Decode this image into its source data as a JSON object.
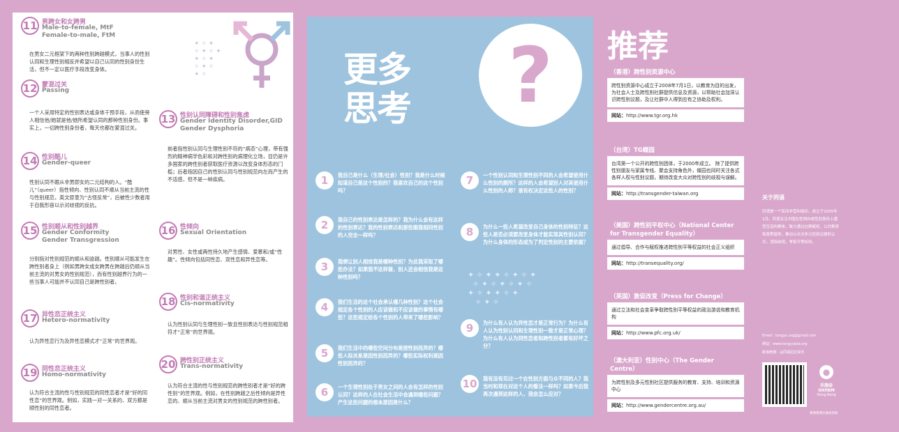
{
  "panel1": {
    "terms": [
      {
        "num": "11",
        "zh": "男跨女和女跨男",
        "en": "Male-to-female, MtF\nFemale-to-male, FtM",
        "desc": "在男女二元框架下的两种性别跨越模式，当事人的性别认同和生理性别相反并希望以自己认同的性别身份生活，但不一定以医疗手段改变身体。"
      },
      {
        "num": "12",
        "zh": "蒙混过关",
        "en": "Passing",
        "desc": "一个人采用特定的性别表达或身体干预手段，从而使旁人相信他/她就是他/她所希望认同的那种性别身份。事实上，一切跨性别身份者，每天也都在蒙混过关。"
      },
      {
        "num": "14",
        "zh": "性别酷儿",
        "en": "Gender-queer",
        "desc": "性别认同不跟从非男即女的二元结构的人。“酷儿”（queer）指性倾向、性别认同不顺从当前主流的性与性别规范，英文原意为“古怪反常”，后被性少数者用于自我形容以示对歧视的反抗。"
      },
      {
        "num": "15",
        "zh": "性别顺从和性别越界",
        "en": "Gender Conformity\nGender Transgression",
        "desc": "分别指对性别规范的顺从和逾越。性别顺从可能发生在跨性别者身上（例如男跨女成女跨男在跨越后仍顺从当前主流的对男女的性别规范），而有性别越界行为的一些当事人可能并不认同自己是跨性别者。"
      },
      {
        "num": "17",
        "zh": "异性恋正统主义",
        "en": "Hetero-normativity",
        "desc": "认为异性恋行为及异性恋模式才“正常”的世界观。"
      },
      {
        "num": "19",
        "zh": "同性恋正统主义",
        "en": "Homo-normativity",
        "desc": "认为符合主流的性与性别规范的同性恋者才是“好的同性恋”的世界观。例如，实践一对一关系的、双方都是顺性别的同性恋者。"
      },
      {
        "num": "13",
        "zh": "性别认同障碍和性别焦虑",
        "en": "Gender Identity Disorder,GID\nGender Dysphoria",
        "desc": "前者指性别认同与生理性别不符的“病态”心理，带有强烈的精神病学色彩和对跨性别的病理化立场，目仍是许多国家的跨性别者获取医疗资源以改变身体形态的门槛；后者指因自己的性别认同与性别规范向左而产生的不适感，但不是一种疾病。"
      },
      {
        "num": "16",
        "zh": "性倾向",
        "en": "Sexual Orientation",
        "desc": "对男性、女性或两性持久地产生感情、爱慕和/或“性趣”。性倾向包括同性恋、双性恋和异性恋等。"
      },
      {
        "num": "18",
        "zh": "性别和谐正统主义",
        "en": "Cis-normativity",
        "desc": "认为性别认同与生理性别一致且性别表达与性别规范相符才“正常”的世界观。"
      },
      {
        "num": "20",
        "zh": "跨性别正统主义",
        "en": "Trans-normativity",
        "desc": "认为符合主流的性与性别规范的跨性别者才是“好的跨性别”的世界观。例如，在性别跨越之后性倾向是异性恋的、顺从当前主流对男女的性别规范的跨性别者。"
      }
    ]
  },
  "panel2": {
    "title_line1": "更多",
    "title_line2": "思考",
    "qmark": "?",
    "questions": [
      {
        "n": "1",
        "t": "我自己是什么（生理/社会）性别？我是什么时候知道自己是这个性别的？我喜欢自己的这个性别吗？"
      },
      {
        "n": "2",
        "t": "我自己的性别表达是怎样的？我为什么会有这样的性别表达？我的性别表达和那些跟我相同性别的人完全一样吗？"
      },
      {
        "n": "3",
        "t": "我想让别人相信我是哪种性别？为此我采取了哪些办法？如果我不这样做，别人还会相信我是这种性别吗？"
      },
      {
        "n": "4",
        "t": "我们生活的这个社会承认哪几种性别？这个社会规定各个性别的人应该做和不应该做的事情有哪些？这些规定给各个性别的人带来了哪些影响？"
      },
      {
        "n": "5",
        "t": "我们生活中的哪些空间分布是按性别而异的？哪些人际关系是因性别而异的？哪些实际权利是因性别而异的？"
      },
      {
        "n": "6",
        "t": "一个生理性别处于男女之间的人会有怎样的性别认同？这样的人在社会生活中会遇到哪些问题？产生这些问题的根本原因是什么？"
      },
      {
        "n": "7",
        "t": "一个性别认同和生理性别不同的人会希望使用什么性别的厕所？这样的人会希望别人对其使用什么性别的人称？谁有权决定这些人的性别？"
      },
      {
        "n": "8",
        "t": "为什么一些人希望改变自己身体的性别特征？这些人是否必须要改变身体才能实现其性别认同？为什么身体的形态成为了判定性别的主要依据？"
      },
      {
        "n": "9",
        "t": "为什么有人认为异性恋才是正常行为？为什么有人认为性别认同和生理性别一致才是正常心理？为什么有人认为同性恋者和跨性别者都有好坏之分？"
      },
      {
        "n": "10",
        "t": "我有没有见过一个在性别方面与众不同的人？我当时和现在对这个人的看法一样吗？如果今后我再次遇到这样的人，我会怎么应对？"
      }
    ]
  },
  "panel3": {
    "title": "推荐",
    "site_label": "网站：",
    "orgs": [
      {
        "h": "（香港）跨性别资源中心",
        "b": "跨性别资源中心成立于2008年7月1日，以教育为目的出发，为社会人士及跨性别社群提供信息及资源，以帮助社会加深认识跨性别议题，及让社群中人得到应有之协助及权利。",
        "url": "http://www.tgr.org.hk"
      },
      {
        "h": "（台湾）TG蝶园",
        "b": "台湾第一个公开的跨性别团体，于2000年成立。 除了提供跨性别朋友与家属专线、聚会支持角色外，蝶园也同时关注各式各样人权与性别议题，期待改变大众对跨性别的歧视与误解。",
        "url": "http://transgender-taiwan.org"
      },
      {
        "h": "（美国）跨性别平权中心（National Center for Transgender Equality）",
        "b": "通过倡导、合作与赋权推进跨性别平等权益的社会正义组织",
        "url": "http://transequality.org/"
      },
      {
        "h": "（英国）敦促改变（Press for Change）",
        "b": "通过立法和社会变革争取跨性别平等权益的政治游说和教育机构",
        "url": "http://www.pfc.org.uk/"
      },
      {
        "h": "（澳大利亚）性别中心（The Gender Centre）",
        "b": "为跨性别及多元性别社区提供服务的教育、支持、培训和资源中心",
        "url": "http://www.gendercentre.org.au/"
      }
    ]
  },
  "panel4": {
    "about_title": "关于同语",
    "about_body": "同语是一个民间非营利组织，成立于2005年1月。同语关注中国在性倾向或性别身份上遭受压迫的群体，致力通过社群赋权、公共教育和政策倡导，推动公众对多元性别议题的认识，消除歧视，争取平等权利。",
    "email": "Email：tongyu.org@gmail.com",
    "web": "网站：www.tongyulala.org",
    "weibo": "新浪微博：@同语拉拉资讯",
    "oxfam_zh": "乐施会",
    "oxfam_en": "OXFAM",
    "oxfam_sub": "Hong Kong",
    "footer": "感谢香港乐施会资助"
  }
}
